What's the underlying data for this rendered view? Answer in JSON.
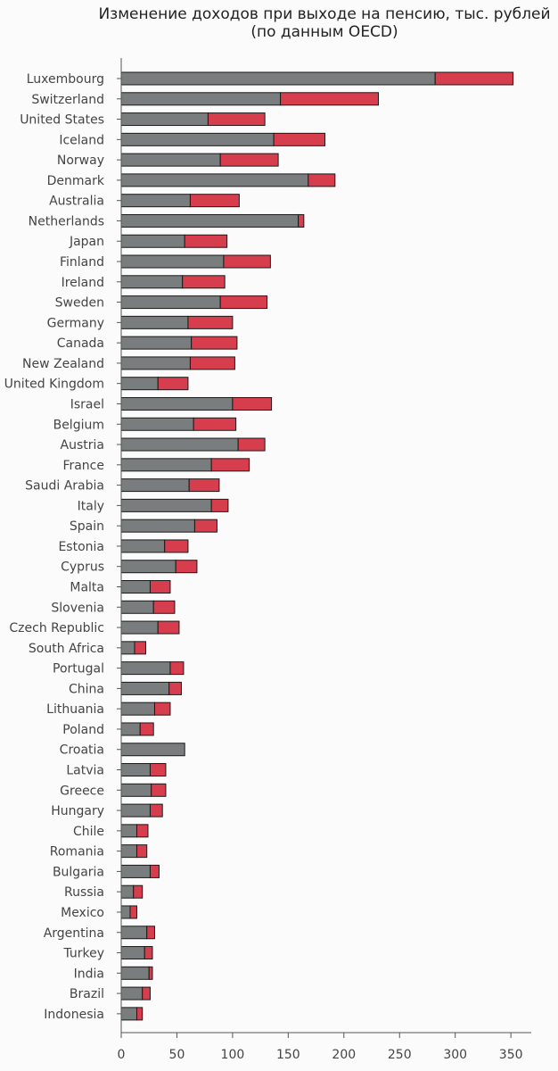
{
  "chart_data": {
    "type": "bar",
    "stacked": true,
    "orientation": "horizontal",
    "title_lines": [
      "Изменение доходов при выходе на пенсию, тыс. рублей",
      "(по данным OECD)"
    ],
    "xlabel": "",
    "ylabel": "",
    "xlim": [
      0,
      370
    ],
    "xticks": [
      0,
      50,
      100,
      150,
      200,
      250,
      300,
      350
    ],
    "grid": false,
    "categories": [
      "Luxembourg",
      "Switzerland",
      "United States",
      "Iceland",
      "Norway",
      "Denmark",
      "Australia",
      "Netherlands",
      "Japan",
      "Finland",
      "Ireland",
      "Sweden",
      "Germany",
      "Canada",
      "New Zealand",
      "United Kingdom",
      "Israel",
      "Belgium",
      "Austria",
      "France",
      "Saudi Arabia",
      "Italy",
      "Spain",
      "Estonia",
      "Cyprus",
      "Malta",
      "Slovenia",
      "Czech Republic",
      "South Africa",
      "Portugal",
      "China",
      "Lithuania",
      "Poland",
      "Croatia",
      "Latvia",
      "Greece",
      "Hungary",
      "Chile",
      "Romania",
      "Bulgaria",
      "Russia",
      "Mexico",
      "Argentina",
      "Turkey",
      "India",
      "Brazil",
      "Indonesia"
    ],
    "series": [
      {
        "color": "#7a7d7d",
        "values": [
          282,
          143,
          78,
          137,
          89,
          168,
          62,
          159,
          57,
          92,
          55,
          89,
          60,
          63,
          62,
          33,
          100,
          65,
          105,
          81,
          61,
          81,
          66,
          39,
          49,
          26,
          29,
          33,
          12,
          44,
          43,
          30,
          17,
          57,
          26,
          27,
          26,
          14,
          14,
          26,
          11,
          8,
          23,
          21,
          25,
          19,
          14
        ]
      },
      {
        "color": "#d63e4e",
        "values": [
          70,
          88,
          51,
          46,
          52,
          24,
          44,
          5,
          38,
          42,
          38,
          42,
          40,
          41,
          40,
          27,
          35,
          38,
          24,
          34,
          27,
          15,
          20,
          21,
          19,
          18,
          19,
          19,
          10,
          12,
          11,
          14,
          12,
          0,
          14,
          13,
          11,
          10,
          9,
          8,
          8,
          6,
          7,
          7,
          3,
          7,
          5
        ]
      }
    ]
  }
}
